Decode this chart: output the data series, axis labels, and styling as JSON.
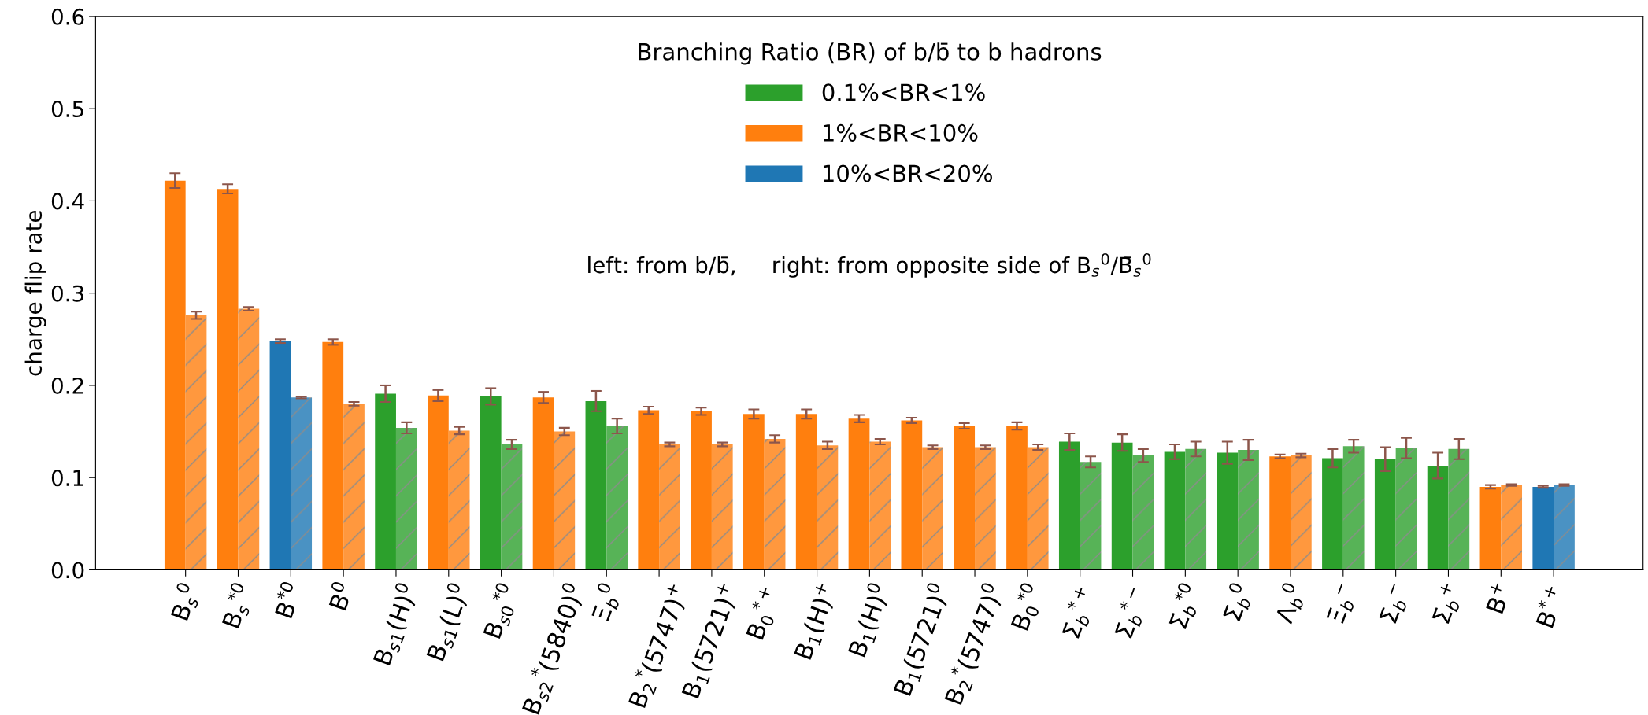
{
  "chart_data": {
    "type": "bar",
    "ylabel": "charge flip rate",
    "legend_title": "Branching Ratio (BR) of b/b̄ to b hadrons",
    "annotations": [
      "left: from b/b̄,     right: from opposite side of B$_{s}$$^{0}$/B̄$_{s}$$^{0}$"
    ],
    "categories": [
      "B$_{s}$$^{0}$",
      "B$_{s}$$^{*0}$",
      "B$^{*0}$",
      "B$^{0}$",
      "B$_{s1}$(H)$^{0}$",
      "B$_{s1}$(L)$^{0}$",
      "B$_{s0}$$^{*0}$",
      "B$_{s2}$$^{*}$(5840)$^{0}$",
      "Ξ$_{b}$$^{0}$",
      "B$_{2}$$^{*}$(5747)$^{+}$",
      "B$_{1}$(5721)$^{+}$",
      "B$_{0}$$^{*+}$",
      "B$_{1}$(H)$^{+}$",
      "B$_{1}$(H)$^{0}$",
      "B$_{1}$(5721)$^{0}$",
      "B$_{2}$$^{*}$(5747)$^{0}$",
      "B$_{0}$$^{*0}$",
      "Σ$_{b}$$^{*+}$",
      "Σ$_{b}$$^{*−}$",
      "Σ$_{b}$$^{*0}$",
      "Σ$_{b}$$^{0}$",
      "Λ$_{b}$$^{0}$",
      "Ξ$_{b}$$^{−}$",
      "Σ$_{b}$$^{−}$",
      "Σ$_{b}$$^{+}$",
      "B$^{+}$",
      "B$^{*+}$"
    ],
    "series": [
      {
        "name": "0.1%<BR<1%",
        "color": "#2ca02c",
        "values": [
          null,
          null,
          null,
          null,
          0.191,
          null,
          0.188,
          null,
          0.183,
          null,
          null,
          null,
          null,
          null,
          null,
          null,
          null,
          0.139,
          0.138,
          0.128,
          0.127,
          null,
          0.121,
          0.12,
          0.113,
          null,
          null
        ],
        "errors": [
          null,
          null,
          null,
          null,
          0.009,
          null,
          0.009,
          null,
          0.011,
          null,
          null,
          null,
          null,
          null,
          null,
          null,
          null,
          0.009,
          0.009,
          0.008,
          0.012,
          null,
          0.01,
          0.013,
          0.014,
          null,
          null
        ]
      },
      {
        "name": "1%<BR<10%",
        "color": "#ff7f0e",
        "values": [
          0.422,
          0.413,
          null,
          0.247,
          null,
          0.189,
          null,
          0.187,
          null,
          0.173,
          0.172,
          0.169,
          0.169,
          0.164,
          0.162,
          0.156,
          0.156,
          null,
          null,
          null,
          null,
          0.123,
          null,
          null,
          null,
          0.09,
          null
        ],
        "errors": [
          0.008,
          0.005,
          null,
          0.003,
          null,
          0.006,
          null,
          0.006,
          null,
          0.004,
          0.004,
          0.005,
          0.005,
          0.004,
          0.003,
          0.003,
          0.004,
          null,
          null,
          null,
          null,
          0.002,
          null,
          null,
          null,
          0.002,
          null
        ]
      },
      {
        "name": "10%<BR<20%",
        "color": "#1f77b4",
        "values": [
          null,
          null,
          0.248,
          null,
          null,
          null,
          null,
          null,
          null,
          null,
          null,
          null,
          null,
          null,
          null,
          null,
          null,
          null,
          null,
          null,
          null,
          null,
          null,
          null,
          null,
          null,
          0.09
        ],
        "errors": [
          null,
          null,
          0.002,
          null,
          null,
          null,
          null,
          null,
          null,
          null,
          null,
          null,
          null,
          null,
          null,
          null,
          null,
          null,
          null,
          null,
          null,
          null,
          null,
          null,
          null,
          null,
          0.001
        ]
      },
      {
        "color": "#57b357",
        "values": [
          null,
          null,
          null,
          null,
          0.154,
          null,
          0.136,
          null,
          0.156,
          null,
          null,
          null,
          null,
          null,
          null,
          null,
          null,
          0.117,
          0.124,
          0.131,
          0.13,
          null,
          0.134,
          0.132,
          0.131,
          null,
          null
        ],
        "errors": [
          null,
          null,
          null,
          null,
          0.006,
          null,
          0.005,
          null,
          0.008,
          null,
          null,
          null,
          null,
          null,
          null,
          null,
          null,
          0.006,
          0.007,
          0.008,
          0.011,
          null,
          0.007,
          0.011,
          0.011,
          null,
          null
        ]
      },
      {
        "color": "#ff983e",
        "values": [
          0.276,
          0.283,
          null,
          0.18,
          null,
          0.151,
          null,
          0.15,
          null,
          0.136,
          0.136,
          0.142,
          0.135,
          0.139,
          0.133,
          0.133,
          0.133,
          null,
          null,
          null,
          null,
          0.124,
          null,
          null,
          null,
          0.092,
          null
        ],
        "errors": [
          0.004,
          0.002,
          null,
          0.002,
          null,
          0.004,
          null,
          0.004,
          null,
          0.002,
          0.002,
          0.004,
          0.004,
          0.003,
          0.002,
          0.002,
          0.003,
          null,
          null,
          null,
          null,
          0.002,
          null,
          null,
          null,
          0.001,
          null
        ]
      },
      {
        "color": "#4a92c3",
        "values": [
          null,
          null,
          0.187,
          null,
          null,
          null,
          null,
          null,
          null,
          null,
          null,
          null,
          null,
          null,
          null,
          null,
          null,
          null,
          null,
          null,
          null,
          null,
          null,
          null,
          null,
          null,
          0.092
        ],
        "errors": [
          null,
          null,
          0.001,
          null,
          null,
          null,
          null,
          null,
          null,
          null,
          null,
          null,
          null,
          null,
          null,
          null,
          null,
          null,
          null,
          null,
          null,
          null,
          null,
          null,
          null,
          null,
          0.001
        ]
      }
    ],
    "ylim": [
      0.0,
      0.6
    ],
    "yticks": [
      {
        "value": 0.0,
        "label": "0.0"
      },
      0.1,
      0.2,
      0.3,
      0.4,
      0.5,
      0.6
    ],
    "legend": "top",
    "grid": false
  }
}
